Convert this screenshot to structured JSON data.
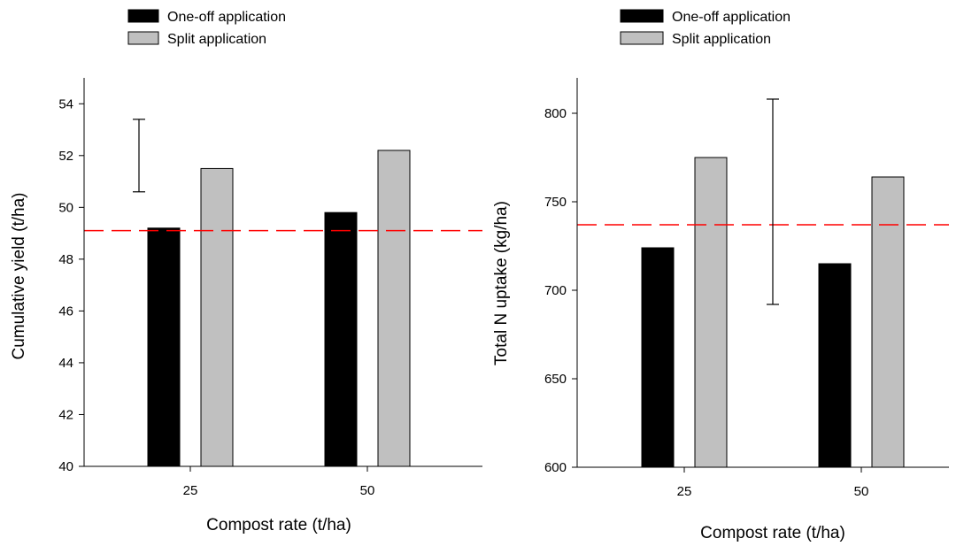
{
  "colors": {
    "one_off": "#000000",
    "split": "#c0c0c0",
    "reference_line": "#ff0000",
    "axis": "#000000"
  },
  "chart_data": [
    {
      "type": "bar",
      "categories": [
        "25",
        "50"
      ],
      "series": [
        {
          "name": "One-off application",
          "values": [
            49.2,
            49.8
          ]
        },
        {
          "name": "Split application",
          "values": [
            51.5,
            52.2
          ]
        }
      ],
      "xlabel": "Compost rate (t/ha)",
      "ylabel": "Cumulative yield (t/ha)",
      "ylim": [
        40,
        55
      ],
      "yticks": [
        40,
        42,
        44,
        46,
        48,
        50,
        52,
        54
      ],
      "reference_line": 49.1,
      "error_bar": {
        "low": 50.6,
        "high": 53.4
      },
      "legend": {
        "position": "top-left",
        "entries": [
          "One-off application",
          "Split application"
        ]
      },
      "grid": false
    },
    {
      "type": "bar",
      "categories": [
        "25",
        "50"
      ],
      "series": [
        {
          "name": "One-off application",
          "values": [
            724,
            715
          ]
        },
        {
          "name": "Split application",
          "values": [
            775,
            764
          ]
        }
      ],
      "xlabel": "Compost rate (t/ha)",
      "ylabel": "Total N uptake (kg/ha)",
      "ylim": [
        600,
        820
      ],
      "yticks": [
        600,
        650,
        700,
        750,
        800
      ],
      "reference_line": 737,
      "error_bar": {
        "low": 692,
        "high": 808
      },
      "legend": {
        "position": "top-left",
        "entries": [
          "One-off application",
          "Split application"
        ]
      },
      "grid": false
    }
  ]
}
